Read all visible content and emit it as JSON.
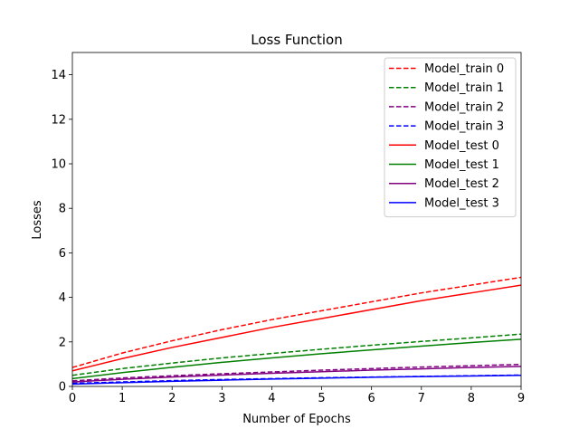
{
  "chart_data": {
    "type": "line",
    "title": "Loss Function",
    "xlabel": "Number of Epochs",
    "ylabel": "Losses",
    "xlim": [
      0,
      9
    ],
    "ylim": [
      0,
      15
    ],
    "xticks": [
      0,
      1,
      2,
      3,
      4,
      5,
      6,
      7,
      8,
      9
    ],
    "yticks": [
      0,
      2,
      4,
      6,
      8,
      10,
      12,
      14
    ],
    "grid": false,
    "legend_position": "top-right",
    "x": [
      0,
      1,
      2,
      3,
      4,
      5,
      6,
      7,
      8,
      9
    ],
    "series": [
      {
        "name": "Model_train 0",
        "color": "#ff0000",
        "style": "dashed",
        "values": [
          0.85,
          1.5,
          2.05,
          2.55,
          3.0,
          3.4,
          3.8,
          4.2,
          4.55,
          4.9
        ]
      },
      {
        "name": "Model_train 1",
        "color": "#008000",
        "style": "dashed",
        "values": [
          0.5,
          0.8,
          1.05,
          1.28,
          1.48,
          1.67,
          1.85,
          2.02,
          2.18,
          2.35
        ]
      },
      {
        "name": "Model_train 2",
        "color": "#800080",
        "style": "dashed",
        "values": [
          0.25,
          0.38,
          0.48,
          0.57,
          0.65,
          0.73,
          0.8,
          0.87,
          0.93,
          0.99
        ]
      },
      {
        "name": "Model_train 3",
        "color": "#0000ff",
        "style": "dashed",
        "values": [
          0.14,
          0.2,
          0.26,
          0.31,
          0.35,
          0.39,
          0.42,
          0.45,
          0.48,
          0.51
        ]
      },
      {
        "name": "Model_test 0",
        "color": "#ff0000",
        "style": "solid",
        "values": [
          0.7,
          1.25,
          1.75,
          2.2,
          2.65,
          3.05,
          3.45,
          3.85,
          4.2,
          4.55
        ]
      },
      {
        "name": "Model_test 1",
        "color": "#008000",
        "style": "solid",
        "values": [
          0.35,
          0.62,
          0.86,
          1.08,
          1.28,
          1.47,
          1.64,
          1.81,
          1.97,
          2.12
        ]
      },
      {
        "name": "Model_test 2",
        "color": "#800080",
        "style": "solid",
        "values": [
          0.2,
          0.32,
          0.42,
          0.51,
          0.59,
          0.66,
          0.73,
          0.79,
          0.85,
          0.9
        ]
      },
      {
        "name": "Model_test 3",
        "color": "#0000ff",
        "style": "solid",
        "values": [
          0.1,
          0.17,
          0.23,
          0.28,
          0.33,
          0.37,
          0.41,
          0.44,
          0.47,
          0.5
        ]
      }
    ]
  }
}
